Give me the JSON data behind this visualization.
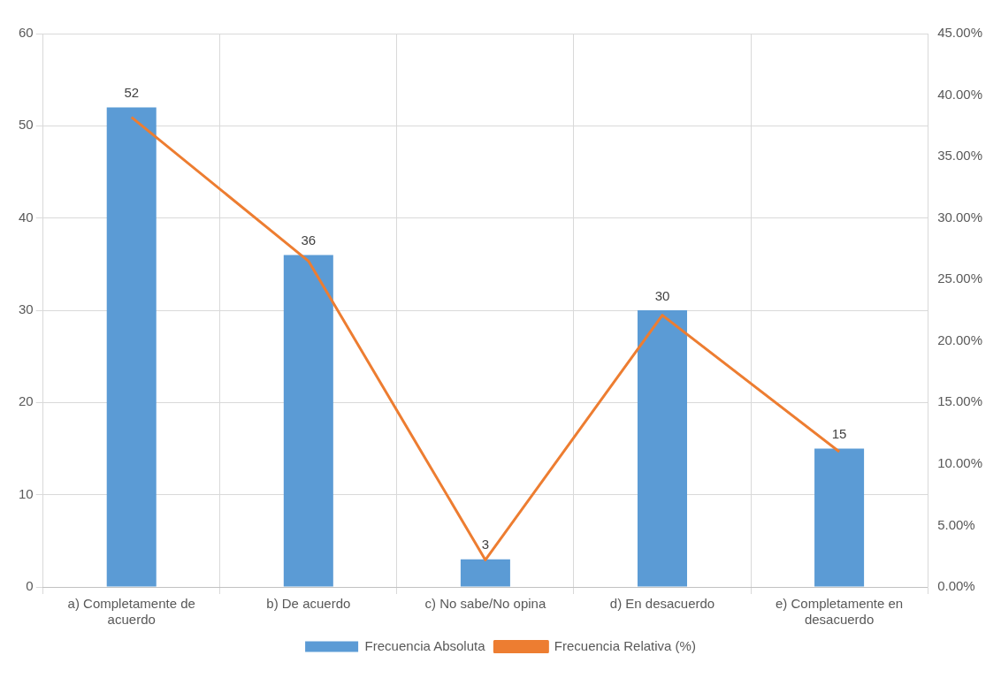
{
  "chart_data": {
    "type": "bar",
    "categories": [
      "a) Completamente de acuerdo",
      "b) De acuerdo",
      "c) No sabe/No opina",
      "d) En desacuerdo",
      "e) Completamente en desacuerdo"
    ],
    "series": [
      {
        "name": "Frecuencia Absoluta",
        "color": "#5b9bd5",
        "values": [
          52,
          36,
          3,
          30,
          15
        ],
        "value_labels": [
          "52",
          "36",
          "3",
          "30",
          "15"
        ]
      },
      {
        "name": "Frecuencia Relativa (%)",
        "type": "line",
        "axis": "y2",
        "color": "#ed7d31",
        "values": [
          38.2,
          26.5,
          2.2,
          22.1,
          11.0
        ]
      }
    ],
    "ylim": [
      0,
      60
    ],
    "yticks": [
      0,
      10,
      20,
      30,
      40,
      50,
      60
    ],
    "y2lim": [
      0,
      45
    ],
    "y2ticks": [
      {
        "value": 0,
        "label": "0.00%"
      },
      {
        "value": 5,
        "label": "5.00%"
      },
      {
        "value": 10,
        "label": "10.00%"
      },
      {
        "value": 15,
        "label": "15.00%"
      },
      {
        "value": 20,
        "label": "20.00%"
      },
      {
        "value": 25,
        "label": "25.00%"
      },
      {
        "value": 30,
        "label": "30.00%"
      },
      {
        "value": 35,
        "label": "35.00%"
      },
      {
        "value": 40,
        "label": "40.00%"
      },
      {
        "value": 45,
        "label": "45.00%"
      }
    ],
    "grid": true,
    "legend": "bottom",
    "marker": "none"
  }
}
